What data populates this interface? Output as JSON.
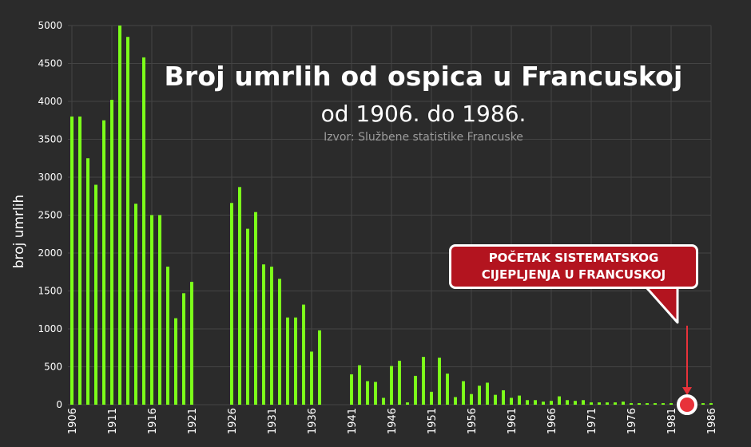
{
  "title": "Broj umrlih od ospica u Francuskoj",
  "subtitle": "od 1906. do 1986.",
  "source": "Izvor: Službene statistike Francuske",
  "annotation": {
    "line1": "POČETAK SISTEMATSKOG",
    "line2": "CIJEPLJENJA U FRANCUSKOJ",
    "year": 1983
  },
  "colors": {
    "background": "#2b2b2b",
    "bar": "#7cff1a",
    "grid": "#444444",
    "annotation": "#b3141f",
    "marker": "#e8323a"
  },
  "chart_data": {
    "type": "bar",
    "title": "Broj umrlih od ospica u Francuskoj",
    "subtitle": "od 1906. do 1986.",
    "xlabel": "",
    "ylabel": "broj umrlih",
    "ylim": [
      0,
      5000
    ],
    "yticks": [
      0,
      500,
      1000,
      1500,
      2000,
      2500,
      3000,
      3500,
      4000,
      4500,
      5000
    ],
    "xticks": [
      1906,
      1911,
      1916,
      1921,
      1926,
      1931,
      1936,
      1941,
      1946,
      1951,
      1956,
      1961,
      1966,
      1971,
      1976,
      1981,
      1986
    ],
    "grid": true,
    "categories": [
      1906,
      1907,
      1908,
      1909,
      1910,
      1911,
      1912,
      1913,
      1914,
      1915,
      1916,
      1917,
      1918,
      1919,
      1920,
      1921,
      1922,
      1923,
      1924,
      1925,
      1926,
      1927,
      1928,
      1929,
      1930,
      1931,
      1932,
      1933,
      1934,
      1935,
      1936,
      1937,
      1938,
      1939,
      1940,
      1941,
      1942,
      1943,
      1944,
      1945,
      1946,
      1947,
      1948,
      1949,
      1950,
      1951,
      1952,
      1953,
      1954,
      1955,
      1956,
      1957,
      1958,
      1959,
      1960,
      1961,
      1962,
      1963,
      1964,
      1965,
      1966,
      1967,
      1968,
      1969,
      1970,
      1971,
      1972,
      1973,
      1974,
      1975,
      1976,
      1977,
      1978,
      1979,
      1980,
      1981,
      1982,
      1983,
      1984,
      1985,
      1986
    ],
    "values": [
      3800,
      3800,
      3250,
      2900,
      3750,
      4020,
      5000,
      4850,
      2650,
      4580,
      2500,
      2500,
      1820,
      1140,
      1470,
      1620,
      null,
      null,
      null,
      null,
      2660,
      2870,
      2320,
      2540,
      1850,
      1820,
      1660,
      1150,
      1150,
      1320,
      700,
      980,
      null,
      null,
      null,
      400,
      520,
      310,
      300,
      90,
      510,
      580,
      30,
      380,
      630,
      170,
      620,
      410,
      100,
      310,
      140,
      250,
      290,
      130,
      190,
      90,
      120,
      60,
      60,
      40,
      50,
      110,
      60,
      50,
      60,
      30,
      30,
      30,
      30,
      40,
      20,
      20,
      20,
      20,
      20,
      20,
      20,
      20,
      20,
      20,
      20
    ]
  }
}
